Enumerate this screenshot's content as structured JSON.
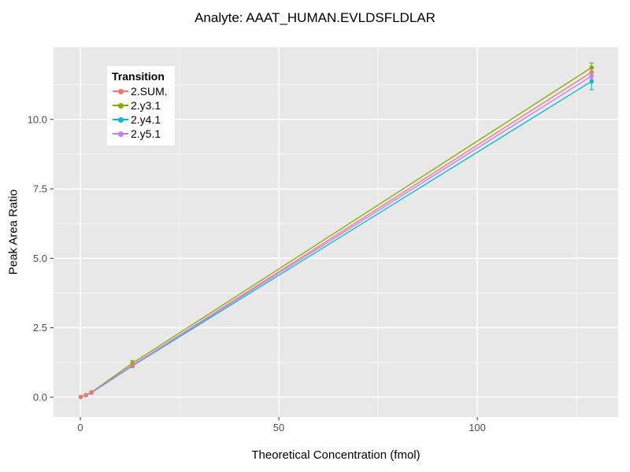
{
  "title": "Analyte: AAAT_HUMAN.EVLDSFLDLAR",
  "colors": {
    "background": "#FFFFFF",
    "panel": "#E8E8E8",
    "grid": "#FFFFFF",
    "tick": "#333333",
    "axis_text": "#4D4D4D",
    "text": "#000000"
  },
  "chart_data": {
    "type": "line",
    "title": "Analyte: AAAT_HUMAN.EVLDSFLDLAR",
    "xlabel": "Theoretical Concentration (fmol)",
    "ylabel": "Peak Area Ratio",
    "legend_title": "Transition",
    "legend_position": "top-left-inside",
    "grid": "on",
    "xlim": [
      -6.75,
      135.5
    ],
    "ylim": [
      -0.71,
      12.6
    ],
    "x_ticks": {
      "values": [
        0,
        50,
        100
      ],
      "labels": [
        "0",
        "50",
        "100"
      ]
    },
    "y_ticks": {
      "values": [
        0,
        2.5,
        5,
        7.5,
        10
      ],
      "labels": [
        "0.0",
        "2.5",
        "5.0",
        "7.5",
        "10.0"
      ]
    },
    "x_minor": [
      25,
      75,
      125
    ],
    "y_minor": [
      1.25,
      3.75,
      6.25,
      8.75,
      11.25
    ],
    "x": [
      0.1,
      1.4,
      2.8,
      13.1,
      128.8
    ],
    "series": [
      {
        "name": "2.SUM.",
        "color": "#F8766D",
        "y": [
          0.01,
          0.07,
          0.17,
          1.15,
          11.7
        ],
        "err": [
          0,
          0,
          0,
          0.05,
          0.12
        ]
      },
      {
        "name": "2.y3.1",
        "color": "#7CAE00",
        "y": [
          0.01,
          0.08,
          0.18,
          1.22,
          11.87
        ],
        "err": [
          0,
          0,
          0,
          0.1,
          0.16
        ]
      },
      {
        "name": "2.y4.1",
        "color": "#00BFC4",
        "y": [
          0.01,
          0.07,
          0.16,
          1.12,
          11.37
        ],
        "err": [
          0,
          0,
          0,
          0.04,
          0.3
        ]
      },
      {
        "name": "2.y5.1",
        "color": "#C77CFF",
        "y": [
          0.01,
          0.07,
          0.17,
          1.14,
          11.56
        ],
        "err": [
          0,
          0,
          0,
          0.04,
          0.1
        ]
      }
    ]
  }
}
